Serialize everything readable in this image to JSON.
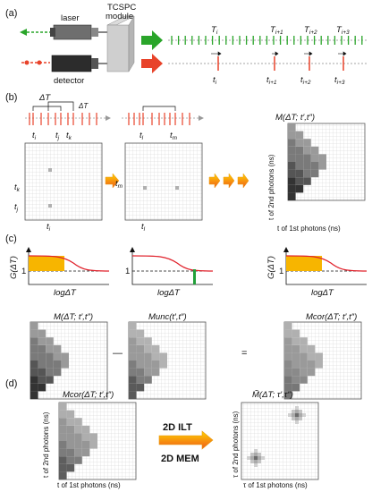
{
  "panel_labels": [
    "(a)",
    "(b)",
    "(c)",
    "(d)"
  ],
  "panel_a": {
    "laser_label": "laser",
    "detector_label": "detector",
    "module_label_line1": "TCSPC",
    "module_label_line2": "module",
    "marker_T": [
      "T",
      "T",
      "T",
      "T"
    ],
    "marker_T_sub": [
      "i",
      "i+1",
      "i+2",
      "i+3"
    ],
    "marker_t": [
      "t",
      "t",
      "t",
      "t"
    ],
    "marker_t_sub": [
      "i",
      "i+1",
      "i+2",
      "i+3"
    ],
    "colors": {
      "sync": "#2aa52a",
      "photon": "#e8432a",
      "module": "#c8c8c8"
    }
  },
  "panel_b": {
    "delta_T": "ΔT",
    "delta_T_small": "ΔT",
    "times_left": [
      "t",
      "t",
      "t"
    ],
    "times_left_sub": [
      "i",
      "j",
      "k"
    ],
    "times_mid": [
      "t",
      "t"
    ],
    "times_mid_sub": [
      "l",
      "m"
    ],
    "grid_left_ylabels": [
      "t",
      "t"
    ],
    "grid_left_ylabels_sub": [
      "k",
      "j"
    ],
    "grid_left_xlabel": "t",
    "grid_left_xlabel_sub": "i",
    "grid_mid_ylabel": "t",
    "grid_mid_ylabel_sub": "m",
    "grid_mid_xlabel": "t",
    "grid_mid_xlabel_sub": "l",
    "matrix_title": "M(ΔT; t′,t″)",
    "ylabel": "t of 2nd photons (ns)",
    "xlabel": "t of 1st photons (ns)"
  },
  "panel_c": {
    "g_label": "G(ΔT)",
    "x_label": "logΔT",
    "one_label": "1",
    "m_titles": [
      "M(ΔT; t′,t″)",
      "Munc(t′,t″)",
      "Mcor(ΔT; t′,t″)"
    ],
    "minus": "—",
    "equals": "="
  },
  "panel_d": {
    "left_title": "Mcor(ΔT; t′,t″)",
    "left_ylabel": "t of 2nd photons (ns)",
    "left_xlabel": "t of 1st photons (ns)",
    "method_1": "2D ILT",
    "method_2": "2D MEM",
    "right_title": "M̃(ΔT; τ′,τ″)",
    "right_ylabel": "τ of 2nd photons (ns)",
    "right_xlabel": "τ of 1st photons (ns)"
  }
}
